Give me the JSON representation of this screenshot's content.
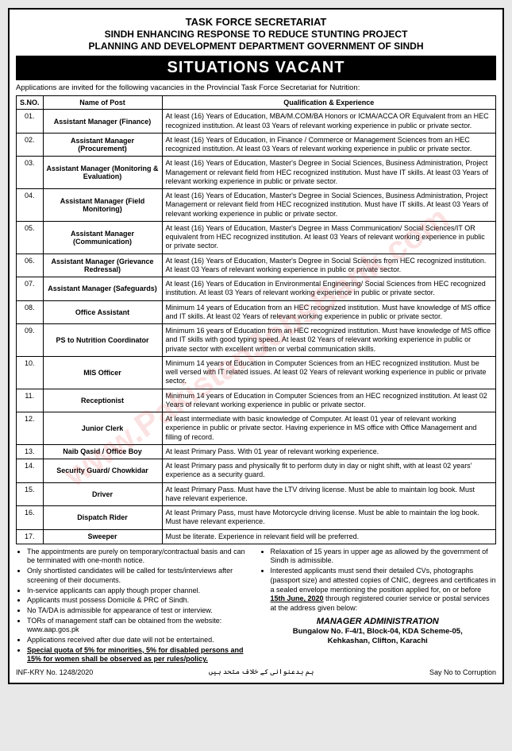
{
  "header": {
    "line1": "TASK FORCE SECRETARIAT",
    "line2": "SINDH ENHANCING RESPONSE TO REDUCE STUNTING PROJECT",
    "line3": "PLANNING AND DEVELOPMENT DEPARTMENT GOVERNMENT OF SINDH"
  },
  "banner": "SITUATIONS VACANT",
  "intro": "Applications are invited for the following vacancies in the Provincial Task Force Secretariat for Nutrition:",
  "table": {
    "headers": {
      "sno": "S.NO.",
      "post": "Name of Post",
      "qual": "Qualification & Experience"
    },
    "rows": [
      {
        "sno": "01.",
        "post": "Assistant Manager (Finance)",
        "qual": "At least (16) Years of Education, MBA/M.COM/BA Honors or ICMA/ACCA OR Equivalent from an HEC recognized institution. At least 03 Years of relevant working experience in public or private sector."
      },
      {
        "sno": "02.",
        "post": "Assistant Manager (Procurement)",
        "qual": "At least (16) Years of Education, in Finance / Commerce or Management Sciences from an HEC recognized institution. At least 03 Years of relevant working experience in public or private sector."
      },
      {
        "sno": "03.",
        "post": "Assistant Manager (Monitoring & Evaluation)",
        "qual": "At least (16) Years of Education, Master's Degree in Social Sciences, Business Administration, Project Management or relevant field from HEC recognized institution. Must have IT skills. At least 03 Years of relevant working experience in public or private sector."
      },
      {
        "sno": "04.",
        "post": "Assistant Manager (Field Monitoring)",
        "qual": "At least (16) Years of Education, Master's Degree in Social Sciences, Business Administration, Project Management or relevant field from HEC recognized institution. Must have IT skills. At least 03 Years of relevant working experience in public or private sector."
      },
      {
        "sno": "05.",
        "post": "Assistant Manager (Communication)",
        "qual": "At least (16) Years of Education, Master's Degree in Mass Communication/ Social Sciences/IT OR equivalent from HEC recognized institution. At least 03 Years of relevant working experience in public or private sector."
      },
      {
        "sno": "06.",
        "post": "Assistant Manager (Grievance Redressal)",
        "qual": "At least (16) Years of Education, Master's Degree in Social Sciences from HEC recognized institution. At least 03 Years of relevant working experience in public or private sector."
      },
      {
        "sno": "07.",
        "post": "Assistant Manager (Safeguards)",
        "qual": "At least (16) Years of Education in Environmental Engineering/ Social Sciences from HEC recognized institution. At least 03 Years of relevant working experience in public or private sector."
      },
      {
        "sno": "08.",
        "post": "Office Assistant",
        "qual": "Minimum 14 years of Education from an HEC recognized institution. Must have knowledge of MS office and IT skills.\nAt least 02 Years of relevant working experience in public or private sector."
      },
      {
        "sno": "09.",
        "post": "PS to Nutrition Coordinator",
        "qual": "Minimum 16 years of Education from an HEC recognized institution. Must have knowledge of MS office and IT skills with good typing speed.\nAt least 02 Years of relevant working experience in public or private sector with excellent written or verbal communication skills."
      },
      {
        "sno": "10.",
        "post": "MIS Officer",
        "qual": "Minimum 14 years of Education in Computer Sciences from an HEC recognized institution. Must be well versed with IT related issues.\nAt least 02 Years of relevant working experience in public or private sector."
      },
      {
        "sno": "11.",
        "post": "Receptionist",
        "qual": "Minimum 14 years of Education in Computer Sciences from an HEC recognized institution. At least 02 Years of relevant working experience in public or private sector."
      },
      {
        "sno": "12.",
        "post": "Junior Clerk",
        "qual": "At least intermediate with basic knowledge of Computer.\nAt least 01 year of relevant working experience in public or private sector. Having experience in MS office with Office Management and filling of record."
      },
      {
        "sno": "13.",
        "post": "Naib Qasid / Office Boy",
        "qual": "At least Primary Pass. With 01 year of relevant working experience."
      },
      {
        "sno": "14.",
        "post": "Security Guard/ Chowkidar",
        "qual": "At least Primary pass and physically fit to perform duty in day or night shift, with at least 02 years' experience as a security guard."
      },
      {
        "sno": "15.",
        "post": "Driver",
        "qual": "At least Primary Pass. Must have the LTV driving license. Must be able to maintain log book. Must have relevant experience."
      },
      {
        "sno": "16.",
        "post": "Dispatch Rider",
        "qual": "At least Primary Pass, must have Motorcycle driving license. Must be able to maintain the log book. Must have relevant experience."
      },
      {
        "sno": "17.",
        "post": "Sweeper",
        "qual": "Must be literate. Experience in relevant field will be preferred."
      }
    ]
  },
  "notes": {
    "left": [
      "The appointments are purely on temporary/contractual basis and can be terminated with one-month notice.",
      "Only shortlisted candidates will be called for tests/interviews after screening of their documents.",
      "In-service applicants can apply though proper channel.",
      "Applicants must possess Domicile & PRC of Sindh.",
      "No TA/DA is admissible for appearance of test or interview.",
      "TORs of management staff can be obtained from the website: www.aap.gos.pk",
      "Applications received after due date will not be entertained."
    ],
    "leftSpecial": "Special quota of 5% for minorities, 5% for disabled persons and 15% for women shall be observed as per rules/policy.",
    "right": [
      "Relaxation of 15 years in upper age as allowed by the government of Sindh is admissible."
    ],
    "rightMain": "Interested applicants must send their detailed CVs, photographs (passport size) and attested copies of CNIC, degrees and certificates in a sealed envelope mentioning the position applied for, on or before",
    "deadline": "15th June, 2020",
    "rightTail": "through registered courier service or postal services at the address given below:"
  },
  "address": {
    "title": "MANAGER ADMINISTRATION",
    "line1": "Bungalow No. F-4/1, Block-04, KDA Scheme-05,",
    "line2": "Kehkashan, Clifton, Karachi"
  },
  "footer": {
    "inf": "INF-KRY No. 1248/2020",
    "urdu": "ہم بدعنوانی کے خلاف متحد ہیں",
    "right": "Say No to Corruption"
  },
  "watermark": "www.PakistanJobsBank.com"
}
